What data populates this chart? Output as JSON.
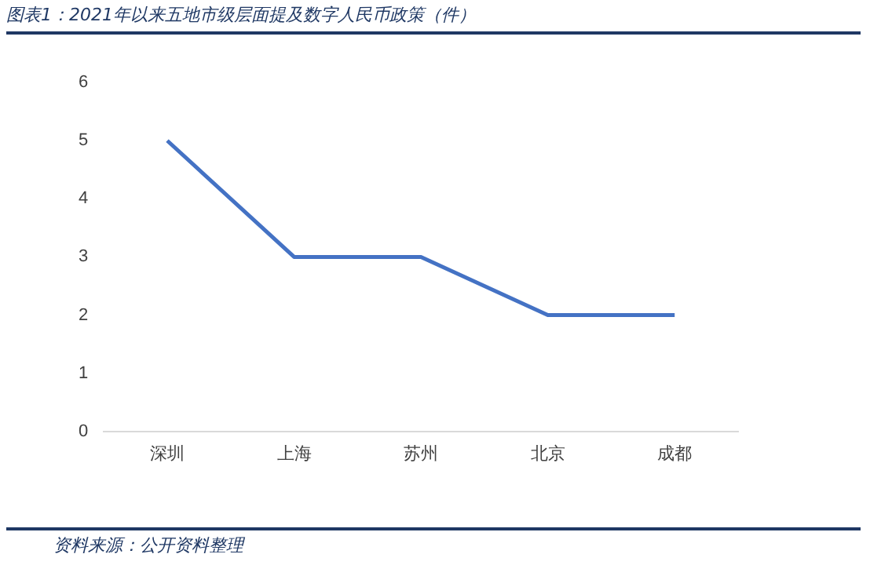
{
  "chart_data": {
    "type": "line",
    "title": "图表1：2021年以来五地市级层面提及数字人民币政策（件）",
    "categories": [
      "深圳",
      "上海",
      "苏州",
      "北京",
      "成都"
    ],
    "series": [
      {
        "color": "#4472c4",
        "values": [
          5,
          3,
          3,
          2,
          2
        ]
      }
    ],
    "ylim": [
      0,
      6
    ],
    "yticks": [
      0,
      1,
      2,
      3,
      4,
      5,
      6
    ],
    "grid": false,
    "legend": false,
    "marker": "none",
    "line_style": "solid",
    "annotations": [
      "资料来源：公开资料整理"
    ]
  }
}
